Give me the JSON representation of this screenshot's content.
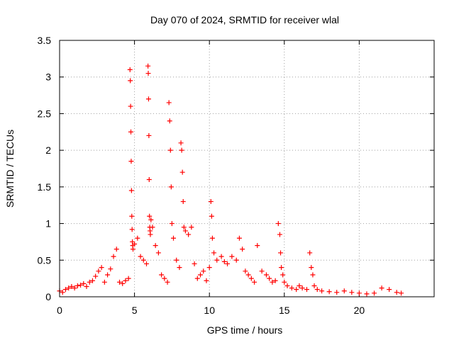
{
  "chart_data": {
    "type": "scatter",
    "title": "Day 070 of 2024, SRMTID for receiver wlal",
    "xlabel": "GPS time / hours",
    "ylabel": "SRMTID / TECUs",
    "xlim": [
      0,
      25
    ],
    "ylim": [
      0,
      3.5
    ],
    "grid": true,
    "marker": "+",
    "series_color": "#ff0000",
    "x_ticks": [
      0,
      5,
      10,
      15,
      20
    ],
    "x_tick_labels": [
      "0",
      "5",
      "10",
      "15",
      "20"
    ],
    "y_ticks": [
      0,
      0.5,
      1,
      1.5,
      2,
      2.5,
      3,
      3.5
    ],
    "y_tick_labels": [
      "0",
      "0.5",
      "1",
      "1.5",
      "2",
      "2.5",
      "3",
      "3.5"
    ],
    "series": [
      {
        "name": "SRMTID",
        "x": [
          0.0,
          0.2,
          0.4,
          0.6,
          0.8,
          1.0,
          1.2,
          1.4,
          1.6,
          1.8,
          2.0,
          2.2,
          2.4,
          2.6,
          2.8,
          3.0,
          3.2,
          3.4,
          3.6,
          3.8,
          4.0,
          4.2,
          4.4,
          4.6,
          4.7,
          4.72,
          4.74,
          4.76,
          4.78,
          4.8,
          4.82,
          4.84,
          4.86,
          4.88,
          4.9,
          5.0,
          5.2,
          5.4,
          5.6,
          5.8,
          5.9,
          5.92,
          5.94,
          5.96,
          5.98,
          6.0,
          6.02,
          6.04,
          6.06,
          6.1,
          6.2,
          6.4,
          6.6,
          6.8,
          7.0,
          7.2,
          7.3,
          7.35,
          7.4,
          7.45,
          7.5,
          7.6,
          7.8,
          8.0,
          8.1,
          8.15,
          8.2,
          8.25,
          8.3,
          8.4,
          8.6,
          8.8,
          9.0,
          9.2,
          9.4,
          9.6,
          9.8,
          10.0,
          10.1,
          10.15,
          10.2,
          10.3,
          10.5,
          10.8,
          11.0,
          11.2,
          11.5,
          11.8,
          12.0,
          12.2,
          12.4,
          12.6,
          12.8,
          13.0,
          13.2,
          13.5,
          13.8,
          14.0,
          14.2,
          14.4,
          14.6,
          14.7,
          14.75,
          14.8,
          14.9,
          15.0,
          15.2,
          15.5,
          15.8,
          16.0,
          16.2,
          16.5,
          16.7,
          16.8,
          16.9,
          17.0,
          17.2,
          17.5,
          18.0,
          18.5,
          19.0,
          19.5,
          20.0,
          20.5,
          21.0,
          21.5,
          22.0,
          22.5,
          22.8
        ],
        "y": [
          0.08,
          0.06,
          0.1,
          0.12,
          0.14,
          0.12,
          0.15,
          0.16,
          0.18,
          0.14,
          0.2,
          0.22,
          0.28,
          0.35,
          0.4,
          0.2,
          0.3,
          0.38,
          0.55,
          0.65,
          0.2,
          0.18,
          0.22,
          0.25,
          3.1,
          2.95,
          2.6,
          2.25,
          1.85,
          1.45,
          1.1,
          0.92,
          0.75,
          0.7,
          0.65,
          0.72,
          0.8,
          0.55,
          0.5,
          0.45,
          3.15,
          3.05,
          2.7,
          2.2,
          1.6,
          1.1,
          0.95,
          0.9,
          0.85,
          1.05,
          0.95,
          0.7,
          0.6,
          0.3,
          0.25,
          0.2,
          2.65,
          2.4,
          2.0,
          1.5,
          1.0,
          0.8,
          0.5,
          0.4,
          2.1,
          2.0,
          1.7,
          1.3,
          0.95,
          0.9,
          0.85,
          0.95,
          0.45,
          0.25,
          0.3,
          0.35,
          0.22,
          0.4,
          1.3,
          1.1,
          0.8,
          0.6,
          0.5,
          0.55,
          0.48,
          0.45,
          0.55,
          0.5,
          0.8,
          0.65,
          0.35,
          0.3,
          0.25,
          0.2,
          0.7,
          0.35,
          0.3,
          0.25,
          0.2,
          0.22,
          1.0,
          0.85,
          0.6,
          0.4,
          0.3,
          0.2,
          0.15,
          0.12,
          0.1,
          0.15,
          0.12,
          0.1,
          0.6,
          0.4,
          0.3,
          0.15,
          0.1,
          0.08,
          0.07,
          0.06,
          0.08,
          0.06,
          0.05,
          0.04,
          0.05,
          0.12,
          0.1,
          0.06,
          0.05
        ]
      }
    ]
  }
}
